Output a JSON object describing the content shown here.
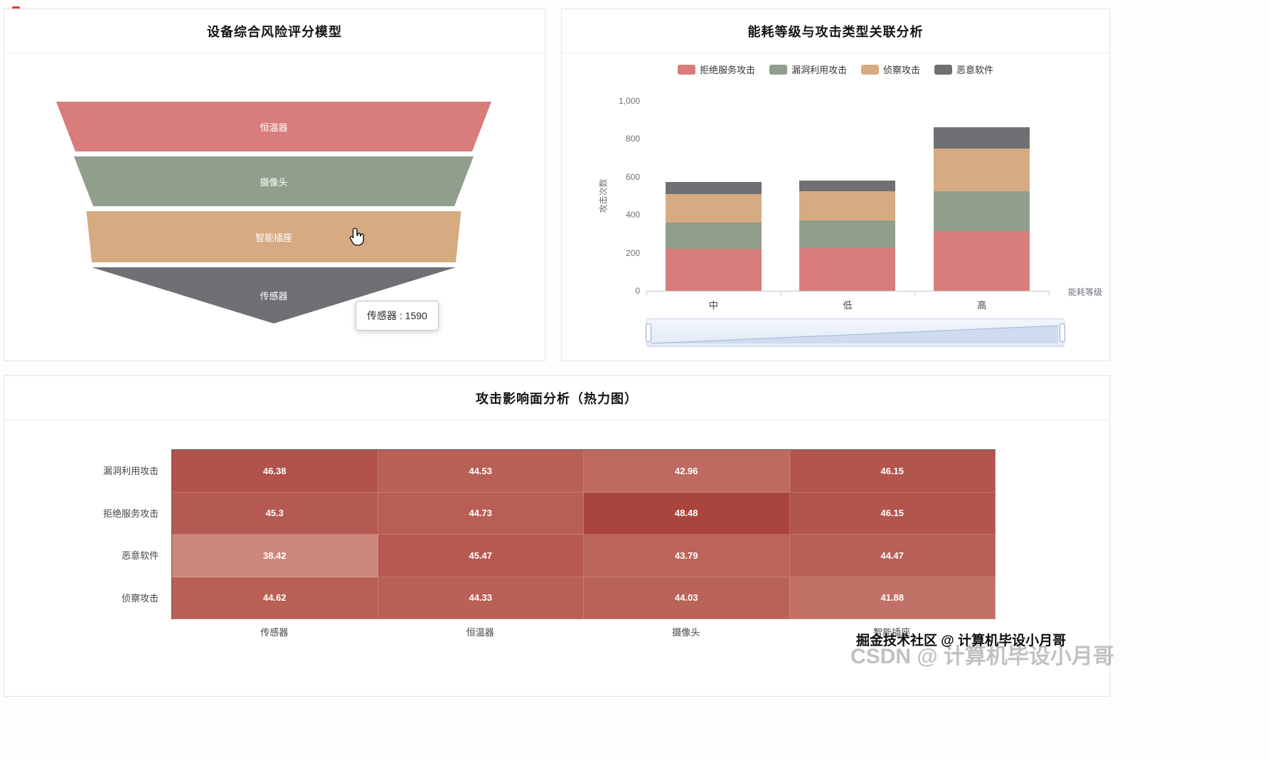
{
  "page": {
    "watermark_primary": "掘金技术社区 @ 计算机毕设小月哥",
    "watermark_secondary": "CSDN @ 计算机毕设小月哥"
  },
  "chart_data": [
    {
      "type": "funnel",
      "title": "设备综合风险评分模型",
      "tooltip_text": "传感器 : 1590",
      "container_width": 620,
      "items": [
        {
          "label": "恒温器",
          "color": "#d87c7c",
          "top_w": 612,
          "bottom_w": 558,
          "height": 70,
          "gap": 7
        },
        {
          "label": "摄像头",
          "color": "#919e8b",
          "top_w": 562,
          "bottom_w": 508,
          "height": 70,
          "gap": 7
        },
        {
          "label": "智能插座",
          "color": "#d7ab82",
          "top_w": 527,
          "bottom_w": 512,
          "height": 72,
          "gap": 7
        },
        {
          "label": "传感器",
          "color": "#6e7074",
          "top_w": 512,
          "bottom_w": 0,
          "height": 79,
          "gap": 0,
          "value": 1590
        }
      ]
    },
    {
      "type": "bar",
      "stacked": true,
      "title": "能耗等级与攻击类型关联分析",
      "categories": [
        "中",
        "低",
        "高"
      ],
      "series": [
        {
          "name": "拒绝服务攻击",
          "color": "#d87c7c",
          "values": [
            220,
            225,
            315
          ]
        },
        {
          "name": "漏洞利用攻击",
          "color": "#919e8b",
          "values": [
            140,
            145,
            210
          ]
        },
        {
          "name": "侦察攻击",
          "color": "#d7ab82",
          "values": [
            150,
            155,
            225
          ]
        },
        {
          "name": "恶意软件",
          "color": "#6e7074",
          "values": [
            65,
            55,
            110
          ]
        }
      ],
      "ylabel": "攻击次数",
      "xlabel": "能耗等级",
      "ylim": [
        0,
        1000
      ],
      "yticks": [
        0,
        200,
        400,
        600,
        800,
        1000
      ],
      "legend_position": "top",
      "grid": false,
      "datazoom": true
    },
    {
      "type": "heatmap",
      "title": "攻击影响面分析（热力图）",
      "columns": [
        "传感器",
        "恒温器",
        "摄像头",
        "智能插座"
      ],
      "rows": [
        "漏洞利用攻击",
        "拒绝服务攻击",
        "恶意软件",
        "侦察攻击"
      ],
      "values": [
        [
          46.38,
          44.53,
          42.96,
          46.15
        ],
        [
          45.3,
          44.73,
          48.48,
          46.15
        ],
        [
          38.42,
          45.47,
          43.79,
          44.47
        ],
        [
          44.62,
          44.33,
          44.03,
          41.88
        ]
      ],
      "color_scale": {
        "min": 38,
        "max": 49,
        "min_color": "#d08a7e",
        "max_color": "#a8423b"
      }
    }
  ]
}
